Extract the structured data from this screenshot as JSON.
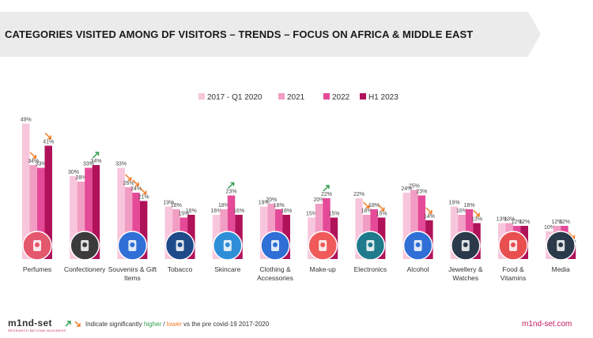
{
  "title": "CATEGORIES VISITED AMONG DF VISITORS – TRENDS – FOCUS ON AFRICA & MIDDLE EAST",
  "footer": {
    "logo": "m1nd-set",
    "logo_sub": "RESEARCH BEYOND BUSINESS",
    "note_prefix": "Indicate significantly ",
    "note_higher": "higher",
    "note_sep": " / ",
    "note_lower": "lower",
    "note_suffix": " vs the pre covid-19 2017-2020",
    "site": "m1nd-set.com"
  },
  "colors": {
    "series": [
      "#f8c6dc",
      "#f29ec4",
      "#e44a98",
      "#b0125a"
    ],
    "up_arrow": "#2e9e4e",
    "down_arrow": "#f07a22",
    "icon_circle": [
      "#e4586e",
      "#3b3b3b",
      "#2f6fd6",
      "#1f4a8a",
      "#2e8fd8",
      "#2f6fd6",
      "#f05a5a",
      "#1f7a8c",
      "#2f6fd6",
      "#2b3a4a",
      "#e94f4f",
      "#2b3a4a"
    ]
  },
  "chart_data": {
    "type": "bar",
    "title": "CATEGORIES VISITED AMONG DF VISITORS – TRENDS – FOCUS ON AFRICA & MIDDLE EAST",
    "categories": [
      "Perfumes",
      "Confectionery",
      "Souvenirs & Gift Items",
      "Tobacco",
      "Skincare",
      "Clothing & Accessories",
      "Make-up",
      "Electronics",
      "Alcohol",
      "Jewellery & Watches",
      "Food & Vitamins",
      "Media"
    ],
    "series": [
      {
        "name": "2017 - Q1 2020",
        "values": [
          49,
          30,
          33,
          19,
          16,
          19,
          15,
          22,
          24,
          19,
          13,
          10
        ]
      },
      {
        "name": "2021",
        "values": [
          34,
          28,
          26,
          18,
          18,
          20,
          20,
          16,
          25,
          16,
          13,
          12
        ]
      },
      {
        "name": "2022",
        "values": [
          33,
          33,
          24,
          15,
          23,
          18,
          22,
          18,
          23,
          18,
          12,
          12
        ]
      },
      {
        "name": "H1 2023",
        "values": [
          41,
          34,
          21,
          16,
          16,
          16,
          15,
          15,
          14,
          13,
          12,
          5
        ]
      }
    ],
    "arrows": [
      [
        "",
        "down",
        "",
        "down"
      ],
      [
        "",
        "",
        "",
        "up"
      ],
      [
        "",
        "down",
        "down",
        "down"
      ],
      [
        "",
        "",
        "",
        ""
      ],
      [
        "",
        "",
        "up",
        ""
      ],
      [
        "",
        "",
        "",
        ""
      ],
      [
        "",
        "",
        "up",
        ""
      ],
      [
        "",
        "down",
        "",
        "down"
      ],
      [
        "",
        "",
        "",
        "down"
      ],
      [
        "",
        "",
        "",
        "down"
      ],
      [
        "",
        "",
        "",
        ""
      ],
      [
        "",
        "",
        "",
        "down"
      ]
    ],
    "icons": [
      "perfume-icon",
      "chocolate-icon",
      "cocktail-icon",
      "cigarette-icon",
      "skincare-bottle-icon",
      "sunscreen-icon",
      "dress-icon",
      "electronics-icon",
      "bottle-icon",
      "necklace-icon",
      "burger-icon",
      "newspaper-icon"
    ],
    "ylim": [
      0,
      50
    ],
    "legend_position": "top-center",
    "grid": false
  }
}
